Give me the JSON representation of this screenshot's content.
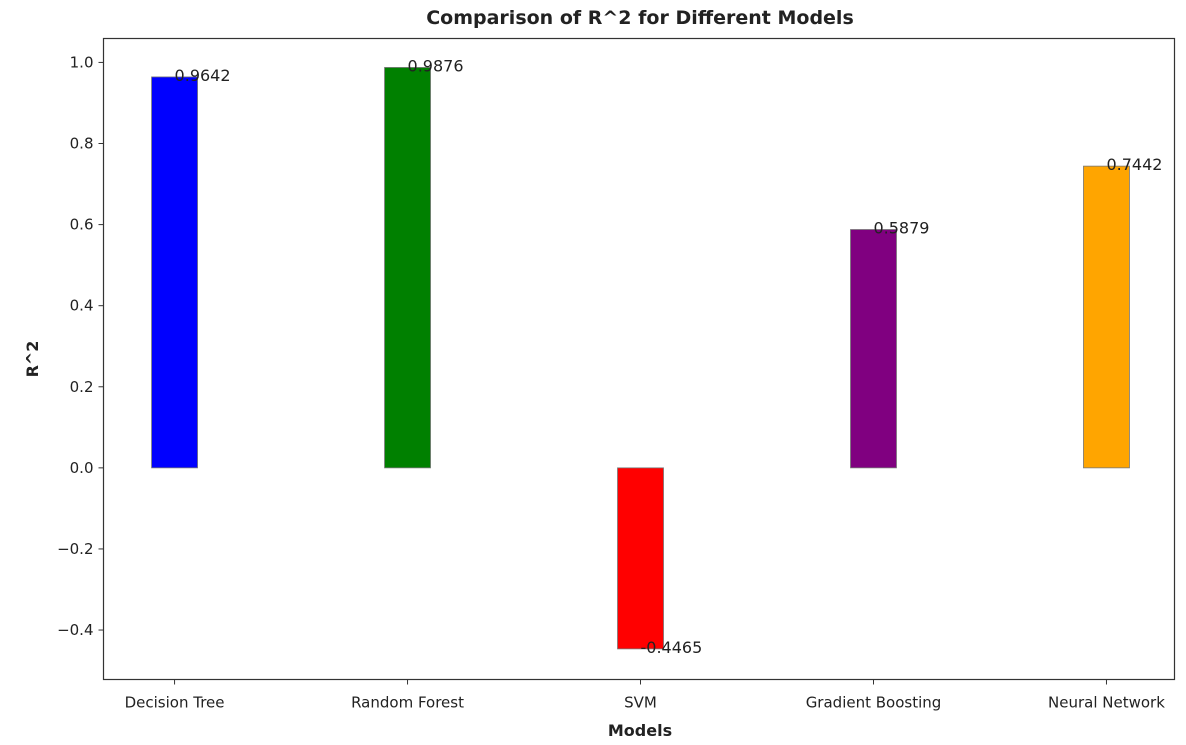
{
  "chart_data": {
    "type": "bar",
    "title": "Comparison of R^2 for Different Models",
    "xlabel": "Models",
    "ylabel": "R^2",
    "categories": [
      "Decision Tree",
      "Random Forest",
      "SVM",
      "Gradient Boosting",
      "Neural Network"
    ],
    "values": [
      0.9642,
      0.9876,
      -0.4465,
      0.5879,
      0.7442
    ],
    "data_labels": [
      "0.9642",
      "0.9876",
      "-0.4465",
      "0.5879",
      "0.7442"
    ],
    "colors": [
      "#0000ff",
      "#008000",
      "#ff0000",
      "#800080",
      "#ffa500"
    ],
    "ylim": [
      -0.522,
      1.059
    ],
    "yticks": [
      -0.4,
      -0.2,
      0.0,
      0.2,
      0.4,
      0.6,
      0.8,
      1.0
    ],
    "ytick_labels": [
      "−0.4",
      "−0.2",
      "0.0",
      "0.2",
      "0.4",
      "0.6",
      "0.8",
      "1.0"
    ],
    "grid": false,
    "legend": "none"
  }
}
